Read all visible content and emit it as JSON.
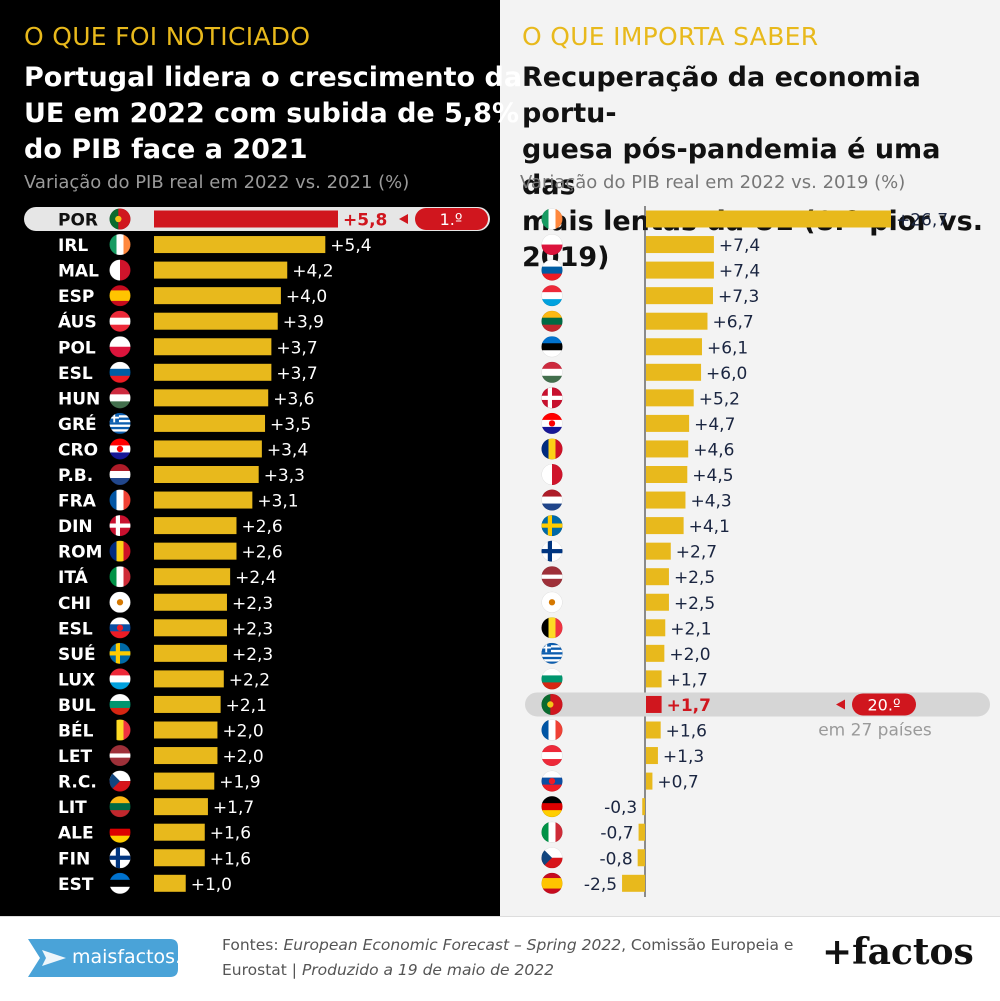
{
  "left": {
    "kicker": "O QUE FOI NOTICIADO",
    "headline_lines": [
      "Portugal lidera o crescimento da",
      "UE em 2022 com subida de 5,8%",
      "do PIB face a 2021"
    ],
    "subtitle": "Variação do PIB real em 2022 vs. 2021 (%)",
    "rank_label": "1.º"
  },
  "right": {
    "kicker": "O QUE IMPORTA SABER",
    "headline_lines": [
      "Recuperação da economia portu-",
      "guesa pós-pandemia é uma das",
      "mais lentas da UE (8.ª pior vs. 2019)"
    ],
    "subtitle": "Variação do PIB real em 2022 vs. 2019 (%)",
    "rank_label": "20.º",
    "rank_note": "em 27 países"
  },
  "footer": {
    "source_prefix": "Fontes: ",
    "source_italic": "European Economic Forecast – Spring 2022",
    "source_rest": ", Comissão Europeia e",
    "source_line2_plain": "Eurostat | ",
    "source_line2_italic": "Produzido a 19 de maio de 2022",
    "site": "maisfactos.pt",
    "brand": "+factos"
  },
  "colors": {
    "bar": "#e8b91c",
    "highlight": "#d0161e",
    "kicker": "#e8b91c",
    "badge": "#4aa3d8"
  },
  "chart_data": [
    {
      "type": "bar",
      "orientation": "horizontal",
      "title": "Variação do PIB real em 2022 vs. 2021 (%)",
      "categories": [
        "POR",
        "IRL",
        "MAL",
        "ESP",
        "ÁUS",
        "POL",
        "ESL",
        "HUN",
        "GRÉ",
        "CRO",
        "P.B.",
        "FRA",
        "DIN",
        "ROM",
        "ITÁ",
        "CHI",
        "ESL",
        "SUÉ",
        "LUX",
        "BUL",
        "BÉL",
        "LET",
        "R.C.",
        "LIT",
        "ALE",
        "FIN",
        "EST"
      ],
      "flags": [
        "portugal",
        "ireland",
        "malta",
        "spain",
        "austria",
        "poland",
        "slovenia",
        "hungary",
        "greece",
        "croatia",
        "netherlands",
        "france",
        "denmark",
        "romania",
        "italy",
        "cyprus",
        "slovakia",
        "sweden",
        "luxembourg",
        "bulgaria",
        "belgium",
        "latvia",
        "czechia",
        "lithuania",
        "germany",
        "finland",
        "estonia"
      ],
      "value_labels": [
        "+5,8",
        "+5,4",
        "+4,2",
        "+4,0",
        "+3,9",
        "+3,7",
        "+3,7",
        "+3,6",
        "+3,5",
        "+3,4",
        "+3,3",
        "+3,1",
        "+2,6",
        "+2,6",
        "+2,4",
        "+2,3",
        "+2,3",
        "+2,3",
        "+2,2",
        "+2,1",
        "+2,0",
        "+2,0",
        "+1,9",
        "+1,7",
        "+1,6",
        "+1,6",
        "+1,0"
      ],
      "values": [
        5.8,
        5.4,
        4.2,
        4.0,
        3.9,
        3.7,
        3.7,
        3.6,
        3.5,
        3.4,
        3.3,
        3.1,
        2.6,
        2.6,
        2.4,
        2.3,
        2.3,
        2.3,
        2.2,
        2.1,
        2.0,
        2.0,
        1.9,
        1.7,
        1.6,
        1.6,
        1.0
      ],
      "highlight_index": 0
    },
    {
      "type": "bar",
      "orientation": "horizontal",
      "title": "Variação do PIB real em 2022 vs. 2019 (%)",
      "flags": [
        "ireland",
        "poland",
        "slovenia",
        "luxembourg",
        "lithuania",
        "estonia",
        "hungary",
        "denmark",
        "croatia",
        "romania",
        "malta",
        "netherlands",
        "sweden",
        "finland",
        "latvia",
        "cyprus",
        "belgium",
        "greece",
        "bulgaria",
        "portugal",
        "france",
        "austria",
        "slovakia",
        "germany",
        "italy",
        "czechia",
        "spain"
      ],
      "value_labels": [
        "+26,7",
        "+7,4",
        "+7,4",
        "+7,3",
        "+6,7",
        "+6,1",
        "+6,0",
        "+5,2",
        "+4,7",
        "+4,6",
        "+4,5",
        "+4,3",
        "+4,1",
        "+2,7",
        "+2,5",
        "+2,5",
        "+2,1",
        "+2,0",
        "+1,7",
        "+1,7",
        "+1,6",
        "+1,3",
        "+0,7",
        "-0,3",
        "-0,7",
        "-0,8",
        "-2,5"
      ],
      "values": [
        26.7,
        7.4,
        7.4,
        7.3,
        6.7,
        6.1,
        6.0,
        5.2,
        4.7,
        4.6,
        4.5,
        4.3,
        4.1,
        2.7,
        2.5,
        2.5,
        2.1,
        2.0,
        1.7,
        1.7,
        1.6,
        1.3,
        0.7,
        -0.3,
        -0.7,
        -0.8,
        -2.5
      ],
      "highlight_index": 19
    }
  ]
}
